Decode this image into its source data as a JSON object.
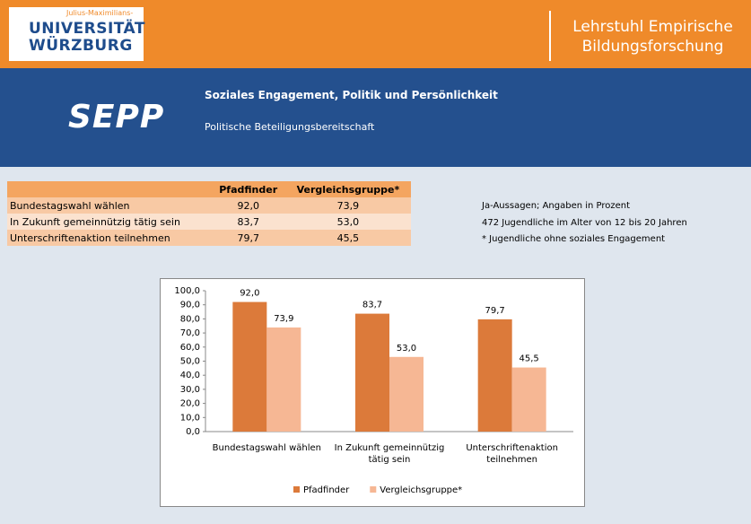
{
  "header": {
    "university": [
      "Julius-Maximilians-",
      "UNIVERSITÄT",
      "WÜRZBURG"
    ],
    "chair": [
      "Lehrstuhl Empirische",
      "Bildungsforschung"
    ]
  },
  "banner": {
    "logo": "SEPP",
    "title": "Soziales Engagement, Politik und Persönlichkeit",
    "subtitle": "Politische Beteiligungsbereitschaft"
  },
  "table": {
    "columns": [
      "Pfadfinder",
      "Vergleichsgruppe*"
    ],
    "rows": [
      {
        "label": "Bundestagswahl wählen",
        "values": [
          "92,0",
          "73,9"
        ]
      },
      {
        "label": "In Zukunft gemeinnützig tätig sein",
        "values": [
          "83,7",
          "53,0"
        ]
      },
      {
        "label": "Unterschriftenaktion teilnehmen",
        "values": [
          "79,7",
          "45,5"
        ]
      }
    ]
  },
  "notes": [
    "Ja-Aussagen; Angaben in Prozent",
    "472 Jugendliche im Alter von 12 bis 20 Jahren",
    "* Jugendliche ohne soziales Engagement"
  ],
  "chart_data": {
    "type": "bar",
    "categories": [
      "Bundestagswahl wählen",
      "In Zukunft gemeinnützig tätig sein",
      "Unterschriftenaktion teilnehmen"
    ],
    "series": [
      {
        "name": "Pfadfinder",
        "color": "#dc7a3a",
        "values": [
          92.0,
          83.7,
          79.7
        ],
        "value_labels": [
          "92,0",
          "83,7",
          "79,7"
        ]
      },
      {
        "name": "Vergleichsgruppe*",
        "color": "#f6b794",
        "values": [
          73.9,
          53.0,
          45.5
        ],
        "value_labels": [
          "73,9",
          "53,0",
          "45,5"
        ]
      }
    ],
    "ylim": [
      0,
      100
    ],
    "yticks": [
      {
        "value": 0,
        "label": "0,0"
      },
      {
        "value": 10,
        "label": "10,0"
      },
      {
        "value": 20,
        "label": "20,0"
      },
      {
        "value": 30,
        "label": "30,0"
      },
      {
        "value": 40,
        "label": "40,0"
      },
      {
        "value": 50,
        "label": "50,0"
      },
      {
        "value": 60,
        "label": "60,0"
      },
      {
        "value": 70,
        "label": "70,0"
      },
      {
        "value": 80,
        "label": "80,0"
      },
      {
        "value": 90,
        "label": "90,0"
      },
      {
        "value": 100,
        "label": "100,0"
      }
    ],
    "legend": "bottom"
  }
}
